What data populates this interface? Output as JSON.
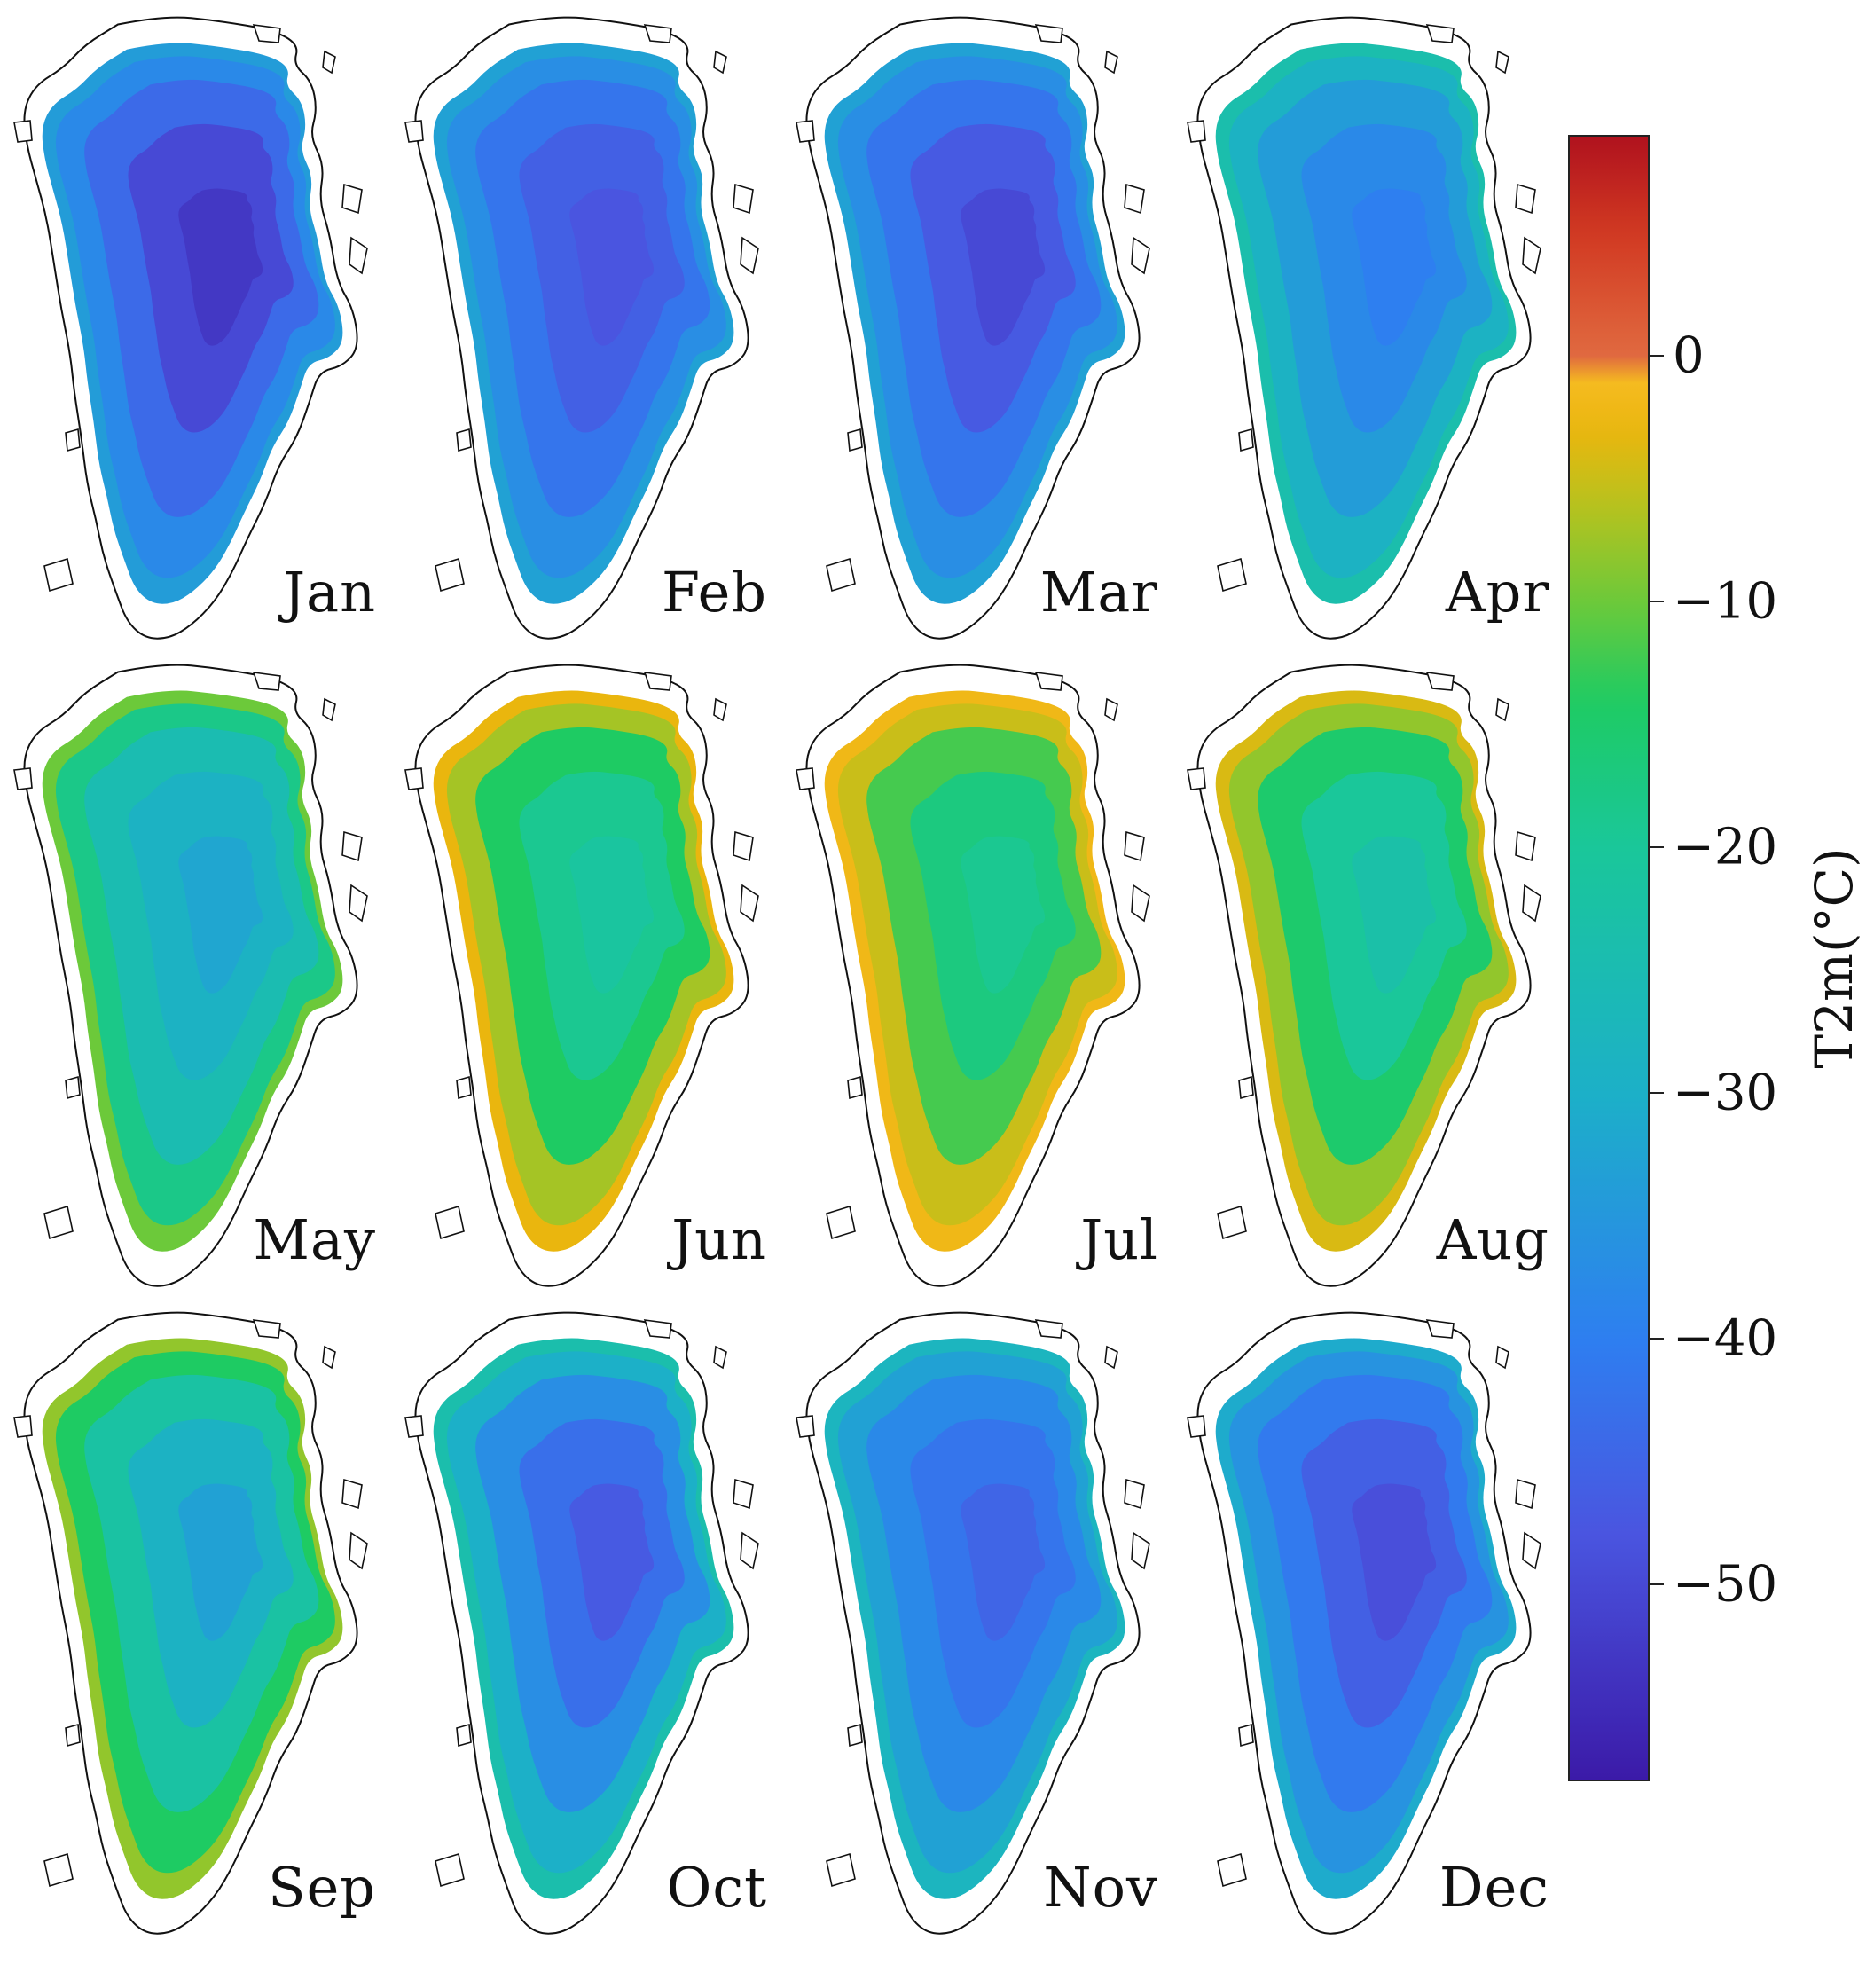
{
  "colorbar": {
    "label": "T2m(°C)",
    "min": -58,
    "max": 9,
    "ticks": [
      0,
      -10,
      -20,
      -30,
      -40,
      -50
    ],
    "tick_labels": [
      "0",
      "−10",
      "−20",
      "−30",
      "−40",
      "−50"
    ],
    "colors": [
      {
        "v": -58,
        "c": "#3b1aa8"
      },
      {
        "v": -48,
        "c": "#4a55e0"
      },
      {
        "v": -40,
        "c": "#2e7ff0"
      },
      {
        "v": -30,
        "c": "#1cb0c8"
      },
      {
        "v": -20,
        "c": "#1ac79a"
      },
      {
        "v": -14,
        "c": "#1ecb63"
      },
      {
        "v": -10,
        "c": "#6cc93a"
      },
      {
        "v": -6,
        "c": "#b8c21e"
      },
      {
        "v": -3,
        "c": "#eab60e"
      },
      {
        "v": 0,
        "c": "#fbbd2a"
      },
      {
        "v": 0.01,
        "c": "#e06a40"
      },
      {
        "v": 5,
        "c": "#d23a22"
      },
      {
        "v": 9,
        "c": "#b0121e"
      }
    ]
  },
  "maps": [
    {
      "month": "Jan",
      "temps": [
        -34,
        -38,
        -44,
        -50,
        -53
      ]
    },
    {
      "month": "Feb",
      "temps": [
        -33,
        -37,
        -42,
        -46,
        -48
      ]
    },
    {
      "month": "Mar",
      "temps": [
        -33,
        -37,
        -42,
        -47,
        -50
      ]
    },
    {
      "month": "Apr",
      "temps": [
        -24,
        -29,
        -34,
        -38,
        -40
      ]
    },
    {
      "month": "May",
      "temps": [
        -10,
        -18,
        -25,
        -29,
        -32
      ]
    },
    {
      "month": "Jun",
      "temps": [
        -3,
        -7,
        -14,
        -19,
        -21
      ]
    },
    {
      "month": "Jul",
      "temps": [
        -2,
        -5,
        -12,
        -17,
        -19
      ]
    },
    {
      "month": "Aug",
      "temps": [
        -4,
        -8,
        -15,
        -20,
        -23
      ]
    },
    {
      "month": "Sep",
      "temps": [
        -8,
        -14,
        -22,
        -29,
        -33
      ]
    },
    {
      "month": "Oct",
      "temps": [
        -24,
        -30,
        -37,
        -43,
        -47
      ]
    },
    {
      "month": "Nov",
      "temps": [
        -28,
        -33,
        -38,
        -42,
        -45
      ]
    },
    {
      "month": "Dec",
      "temps": [
        -31,
        -36,
        -41,
        -46,
        -49
      ]
    }
  ]
}
